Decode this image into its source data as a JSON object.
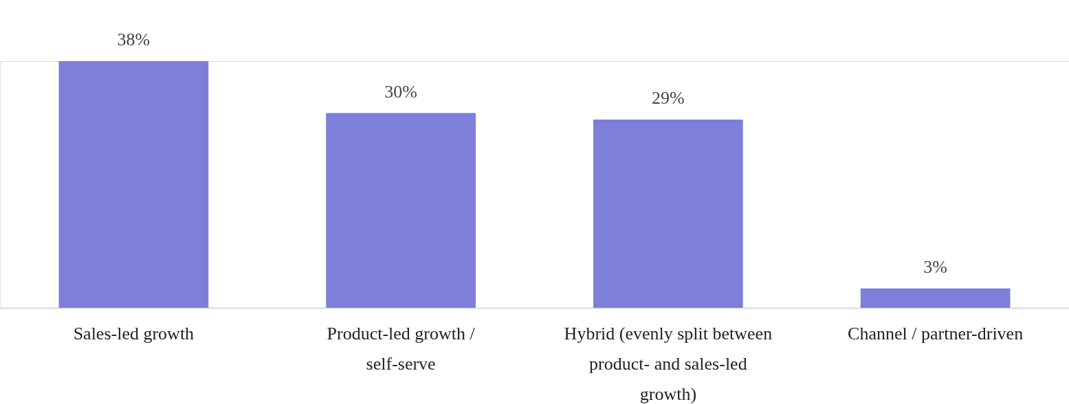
{
  "chart_data": {
    "type": "bar",
    "categories": [
      "Sales-led growth",
      "Product-led growth / self-serve",
      "Hybrid (evenly split between product- and sales-led growth)",
      "Channel / partner-driven"
    ],
    "values": [
      38,
      30,
      29,
      3
    ],
    "value_labels": [
      "38%",
      "30%",
      "29%",
      "3%"
    ],
    "color": "#7d7fd9",
    "grid": false
  }
}
